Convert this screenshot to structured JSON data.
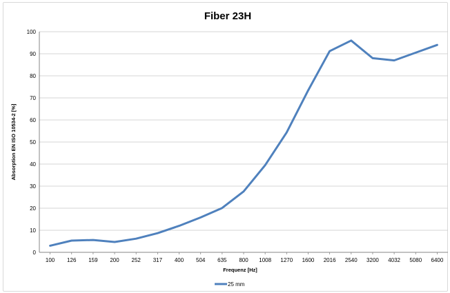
{
  "chart_data": {
    "type": "line",
    "title": "Fiber 23H",
    "xlabel": "Frequenz [Hz]",
    "ylabel": "Absorption EN ISO 10534-2  [%]",
    "categories": [
      "100",
      "126",
      "159",
      "200",
      "252",
      "317",
      "400",
      "504",
      "635",
      "800",
      "1008",
      "1270",
      "1600",
      "2016",
      "2540",
      "3200",
      "4032",
      "5080",
      "6400"
    ],
    "series": [
      {
        "name": "25 mm",
        "color": "#4f81bd",
        "values": [
          3,
          5.3,
          5.6,
          4.7,
          6.2,
          8.7,
          12,
          15.8,
          20.1,
          27.6,
          39.5,
          54.3,
          73.4,
          91.2,
          96,
          88,
          87,
          90.5,
          94
        ]
      }
    ],
    "ylim": [
      0,
      100
    ],
    "yticks": [
      0,
      10,
      20,
      30,
      40,
      50,
      60,
      70,
      80,
      90,
      100
    ],
    "grid": true,
    "legend_position": "bottom"
  }
}
